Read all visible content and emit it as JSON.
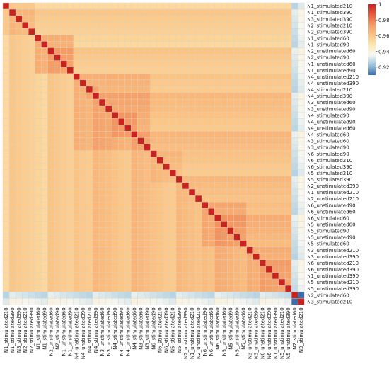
{
  "chart_data": {
    "type": "heatmap",
    "title": "",
    "xlabel": "",
    "ylabel": "",
    "labels": [
      "N1_stimulated210",
      "N1_stimulated390",
      "N3_stimulated390",
      "N2_stimulated210",
      "N2_stimulated390",
      "N1_stimulated60",
      "N1_stimulated90",
      "N2_unstimulated60",
      "N2_stimulated90",
      "N1_unstimulated60",
      "N1_unstimulated90",
      "N4_unstimulated210",
      "N4_unstimulated390",
      "N4_stimulated210",
      "N4_stimulated390",
      "N3_unstimulated60",
      "N3_unstimulated90",
      "N4_stimulated90",
      "N4_unstimulated90",
      "N4_unstimulated60",
      "N4_stimulated60",
      "N3_stimulated60",
      "N3_stimulated90",
      "N6_stimulated90",
      "N6_stimulated210",
      "N6_stimulated390",
      "N5_stimulated210",
      "N5_stimulated390",
      "N2_unstimulated390",
      "N1_unstimulated210",
      "N2_unstimulated210",
      "N6_unstimulated90",
      "N6_unstimulated60",
      "N6_stimulated60",
      "N5_unstimulated60",
      "N5_stimulated90",
      "N5_unstimulated90",
      "N5_stimulated60",
      "N3_unstimulated210",
      "N3_unstimulated390",
      "N6_unstimulated210",
      "N6_unstimulated390",
      "N1_unstimulated390",
      "N5_unstimulated210",
      "N5_unstimulated390",
      "N2_stimulated60",
      "N3_stimulated210"
    ],
    "clusters": [
      {
        "members": [
          0,
          4
        ],
        "value": 0.963
      },
      {
        "members": [
          5,
          10
        ],
        "value": 0.97
      },
      {
        "members": [
          11,
          22
        ],
        "value": 0.969
      },
      {
        "members": [
          13,
          14
        ],
        "value": 0.974
      },
      {
        "members": [
          17,
          20
        ],
        "value": 0.976
      },
      {
        "members": [
          23,
          27
        ],
        "value": 0.966
      },
      {
        "members": [
          28,
          30
        ],
        "value": 0.963
      },
      {
        "members": [
          31,
          44
        ],
        "value": 0.965
      },
      {
        "members": [
          31,
          37
        ],
        "value": 0.972
      },
      {
        "members": [
          38,
          44
        ],
        "value": 0.971
      }
    ],
    "background_value": 0.957,
    "cross_block_value": 0.962,
    "diagonal_value": 1.0,
    "outlier_rows": [
      {
        "index": 45,
        "value": 0.93
      },
      {
        "index": 46,
        "value": 0.936
      }
    ],
    "outlier_pair_value": 0.905,
    "colorbar": {
      "min": 0.91,
      "max": 1.0,
      "ticks": [
        1,
        0.98,
        0.96,
        0.94,
        0.92
      ],
      "tick_labels": [
        "1",
        "0.98",
        "0.96",
        "0.94",
        "0.92"
      ],
      "colors": [
        "#3a6fb0",
        "#9cc6de",
        "#f7f7f2",
        "#fde7b0",
        "#fcc281",
        "#f59a62",
        "#e8593e",
        "#c92320"
      ],
      "position": "top-right"
    },
    "grid": true
  }
}
